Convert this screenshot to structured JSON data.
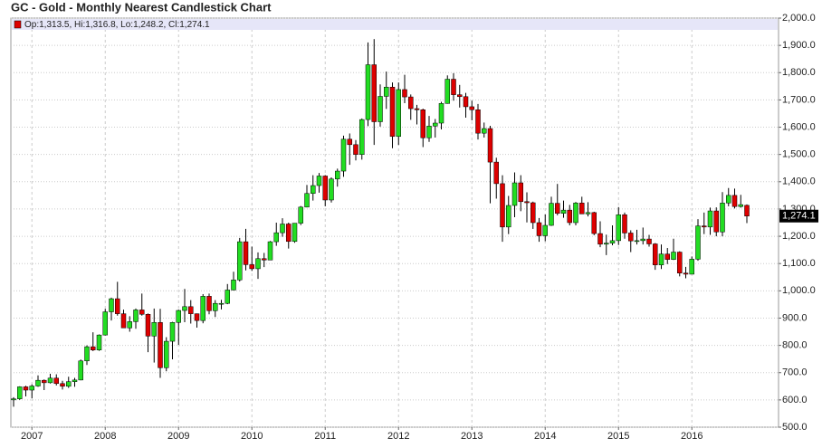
{
  "chart_data": {
    "type": "candlestick",
    "title": "GC - Gold - Monthly Nearest Candlestick Chart",
    "legend": "Op:1,313.5, Hi:1,316.8, Lo:1,248.2, Cl:1,274.1",
    "last_label": "1,274.1",
    "up_color": "#22dd22",
    "down_color": "#dd0000",
    "grid": true,
    "categories": [
      null,
      null,
      null,
      "2007",
      null,
      null,
      null,
      null,
      null,
      null,
      null,
      null,
      null,
      null,
      null,
      "2008",
      null,
      null,
      null,
      null,
      null,
      null,
      null,
      null,
      null,
      null,
      null,
      "2009",
      null,
      null,
      null,
      null,
      null,
      null,
      null,
      null,
      null,
      null,
      null,
      "2010",
      null,
      null,
      null,
      null,
      null,
      null,
      null,
      null,
      null,
      null,
      null,
      "2011",
      null,
      null,
      null,
      null,
      null,
      null,
      null,
      null,
      null,
      null,
      null,
      "2012",
      null,
      null,
      null,
      null,
      null,
      null,
      null,
      null,
      null,
      null,
      null,
      "2013",
      null,
      null,
      null,
      null,
      null,
      null,
      null,
      null,
      null,
      null,
      null,
      "2014",
      null,
      null,
      null,
      null,
      null,
      null,
      null,
      null,
      null,
      null,
      null,
      "2015",
      null,
      null,
      null,
      null,
      null,
      null,
      null,
      null,
      null,
      null,
      null,
      "2016",
      null,
      null,
      null,
      null,
      null,
      null,
      null,
      null,
      null
    ],
    "open": [
      600,
      604,
      648,
      636,
      651,
      672,
      663,
      680,
      660,
      650,
      667,
      673,
      743,
      795,
      783,
      838,
      923,
      971,
      916,
      864,
      887,
      930,
      914,
      834,
      884,
      718,
      815,
      884,
      928,
      942,
      916,
      891,
      980,
      927,
      954,
      954,
      1003,
      1040,
      1180,
      1096,
      1081,
      1118,
      1113,
      1180,
      1213,
      1245,
      1181,
      1248,
      1307,
      1357,
      1386,
      1421,
      1333,
      1410,
      1439,
      1556,
      1536,
      1500,
      1628,
      1829,
      1620,
      1713,
      1747,
      1566,
      1738,
      1711,
      1668,
      1664,
      1561,
      1604,
      1615,
      1687,
      1776,
      1719,
      1712,
      1675,
      1664,
      1578,
      1595,
      1472,
      1393,
      1234,
      1313,
      1396,
      1327,
      1323,
      1250,
      1202,
      1240,
      1321,
      1284,
      1296,
      1250,
      1322,
      1282,
      1287,
      1210,
      1171,
      1175,
      1184,
      1279,
      1212,
      1183,
      1184,
      1190,
      1172,
      1095,
      1135,
      1115,
      1142,
      1065,
      1061,
      1116,
      1238,
      1234,
      1293,
      1216,
      1322,
      1350,
      1309,
      1313.5
    ],
    "high": [
      610,
      650,
      652,
      657,
      690,
      675,
      696,
      694,
      670,
      685,
      681,
      748,
      800,
      848,
      840,
      934,
      975,
      1033,
      931,
      907,
      935,
      990,
      917,
      935,
      934,
      830,
      886,
      931,
      1007,
      966,
      917,
      988,
      990,
      966,
      967,
      1025,
      1070,
      1194,
      1227,
      1162,
      1141,
      1139,
      1183,
      1250,
      1266,
      1250,
      1248,
      1311,
      1388,
      1424,
      1432,
      1424,
      1416,
      1448,
      1569,
      1577,
      1553,
      1632,
      1911,
      1923,
      1757,
      1804,
      1764,
      1764,
      1792,
      1720,
      1682,
      1668,
      1641,
      1630,
      1693,
      1790,
      1798,
      1755,
      1726,
      1697,
      1685,
      1617,
      1605,
      1488,
      1424,
      1348,
      1434,
      1424,
      1361,
      1327,
      1267,
      1280,
      1345,
      1392,
      1331,
      1315,
      1326,
      1345,
      1325,
      1290,
      1255,
      1206,
      1240,
      1307,
      1287,
      1222,
      1224,
      1232,
      1205,
      1175,
      1170,
      1157,
      1191,
      1145,
      1088,
      1126,
      1263,
      1287,
      1305,
      1306,
      1362,
      1377,
      1375,
      1352,
      1316.8
    ],
    "low": [
      575,
      600,
      613,
      606,
      648,
      636,
      660,
      653,
      638,
      644,
      648,
      672,
      728,
      779,
      780,
      836,
      891,
      909,
      866,
      850,
      861,
      909,
      775,
      737,
      681,
      705,
      749,
      802,
      885,
      880,
      865,
      881,
      914,
      904,
      932,
      951,
      1002,
      1034,
      1075,
      1073,
      1044,
      1087,
      1114,
      1165,
      1198,
      1155,
      1176,
      1241,
      1306,
      1331,
      1360,
      1310,
      1324,
      1382,
      1418,
      1462,
      1478,
      1481,
      1604,
      1535,
      1602,
      1667,
      1523,
      1535,
      1688,
      1627,
      1610,
      1527,
      1546,
      1562,
      1592,
      1686,
      1697,
      1672,
      1635,
      1625,
      1555,
      1562,
      1321,
      1338,
      1180,
      1208,
      1270,
      1292,
      1251,
      1227,
      1180,
      1182,
      1238,
      1277,
      1268,
      1240,
      1240,
      1282,
      1273,
      1204,
      1160,
      1131,
      1167,
      1168,
      1191,
      1142,
      1170,
      1170,
      1162,
      1077,
      1080,
      1098,
      1113,
      1053,
      1046,
      1062,
      1110,
      1208,
      1205,
      1200,
      1200,
      1310,
      1302,
      1305,
      1248.2
    ],
    "close": [
      604,
      648,
      636,
      651,
      672,
      663,
      680,
      660,
      650,
      667,
      673,
      743,
      795,
      783,
      838,
      923,
      971,
      916,
      864,
      887,
      930,
      914,
      834,
      884,
      718,
      815,
      884,
      928,
      942,
      916,
      891,
      980,
      927,
      954,
      954,
      1003,
      1040,
      1180,
      1096,
      1081,
      1118,
      1113,
      1180,
      1213,
      1245,
      1181,
      1248,
      1307,
      1357,
      1386,
      1421,
      1333,
      1410,
      1439,
      1556,
      1536,
      1500,
      1628,
      1829,
      1620,
      1713,
      1747,
      1566,
      1738,
      1711,
      1668,
      1664,
      1561,
      1604,
      1615,
      1687,
      1776,
      1719,
      1712,
      1675,
      1664,
      1578,
      1595,
      1472,
      1393,
      1234,
      1313,
      1396,
      1327,
      1323,
      1250,
      1202,
      1240,
      1321,
      1284,
      1296,
      1250,
      1322,
      1282,
      1287,
      1210,
      1171,
      1175,
      1184,
      1279,
      1212,
      1183,
      1184,
      1190,
      1172,
      1095,
      1135,
      1115,
      1142,
      1065,
      1061,
      1116,
      1238,
      1234,
      1293,
      1216,
      1322,
      1350,
      1309,
      1316,
      1274.1
    ],
    "ylim": [
      500,
      2000
    ],
    "yticks": [
      {
        "value": 500,
        "label": "500.0"
      },
      {
        "value": 600,
        "label": "600.0"
      },
      {
        "value": 700,
        "label": "700.0"
      },
      {
        "value": 800,
        "label": "800.0"
      },
      {
        "value": 900,
        "label": "900.0"
      },
      {
        "value": 1000,
        "label": "1,000.0"
      },
      {
        "value": 1100,
        "label": "1,100.0"
      },
      {
        "value": 1200,
        "label": "1,200.0"
      },
      {
        "value": 1300,
        "label": "1,300.0"
      },
      {
        "value": 1400,
        "label": "1,400.0"
      },
      {
        "value": 1500,
        "label": "1,500.0"
      },
      {
        "value": 1600,
        "label": "1,600.0"
      },
      {
        "value": 1700,
        "label": "1,700.0"
      },
      {
        "value": 1800,
        "label": "1,800.0"
      },
      {
        "value": 1900,
        "label": "1,900.0"
      },
      {
        "value": 2000,
        "label": "2,000.0"
      }
    ]
  }
}
